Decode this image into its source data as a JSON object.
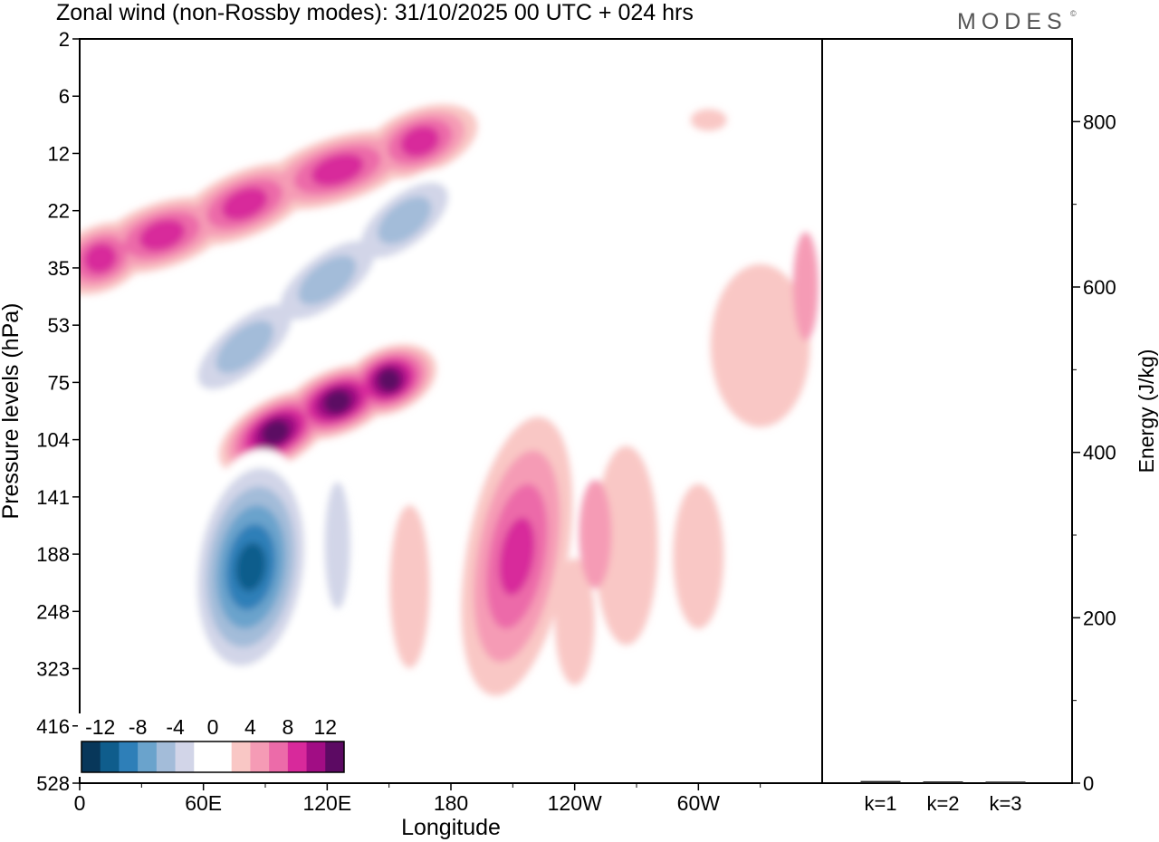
{
  "chart_data": {
    "type": "heatmap",
    "title": "Zonal wind (non-Rossby modes):  31/10/2025  00 UTC  + 024 hrs",
    "brand": "MODES",
    "brand_mark": "©",
    "xlabel": "Longitude",
    "ylabel": "Pressure levels (hPa)",
    "x_ticks": [
      {
        "label": "0",
        "lon": 0
      },
      {
        "label": "60E",
        "lon": 60
      },
      {
        "label": "120E",
        "lon": 120
      },
      {
        "label": "180",
        "lon": 180
      },
      {
        "label": "120W",
        "lon": 240
      },
      {
        "label": "60W",
        "lon": 300
      }
    ],
    "xlim": [
      0,
      360
    ],
    "y_ticks": [
      "2",
      "6",
      "12",
      "22",
      "35",
      "53",
      "75",
      "104",
      "141",
      "188",
      "248",
      "323",
      "416",
      "528"
    ],
    "colorbar": {
      "labels": [
        "-12",
        "-8",
        "-4",
        "0",
        "4",
        "8",
        "12"
      ],
      "colors": [
        "#08375a",
        "#0f5d8c",
        "#2e7fb8",
        "#6aa3cc",
        "#a3bcd9",
        "#d2d5e8",
        "#ffffff",
        "#ffffff",
        "#f9c7c5",
        "#f59bb5",
        "#ec6ba9",
        "#d8299b",
        "#a10d84",
        "#5c0a63"
      ]
    },
    "levels": [
      -14,
      -12,
      -10,
      -8,
      -6,
      -4,
      -2,
      2,
      4,
      6,
      8,
      10,
      12,
      14
    ],
    "features": [
      {
        "name": "stratospheric-westerly-band",
        "sign": "+",
        "peak": 9,
        "path": [
          [
            0,
            35
          ],
          [
            20,
            30
          ],
          [
            60,
            24
          ],
          [
            100,
            17
          ],
          [
            150,
            12
          ],
          [
            180,
            9
          ]
        ]
      },
      {
        "name": "stratospheric-easterly-band",
        "sign": "-",
        "peak": -6,
        "path": [
          [
            60,
            75
          ],
          [
            100,
            48
          ],
          [
            140,
            30
          ],
          [
            175,
            18
          ]
        ]
      },
      {
        "name": "lower-strat-westerly-band",
        "sign": "+",
        "peak": 12,
        "path": [
          [
            80,
            110
          ],
          [
            110,
            90
          ],
          [
            140,
            78
          ],
          [
            160,
            70
          ]
        ]
      },
      {
        "name": "upper-trop-easterly-jet",
        "sign": "-",
        "peak": -13,
        "center": [
          83,
          200
        ]
      },
      {
        "name": "upper-trop-westerly",
        "sign": "+",
        "peak": 9,
        "center": [
          212,
          190
        ]
      }
    ],
    "energy_panel": {
      "ylabel": "Energy (J/kg)",
      "ylim": [
        0,
        900
      ],
      "y_ticks": [
        "0",
        "200",
        "400",
        "600",
        "800"
      ],
      "categories": [
        "k=1",
        "k=2",
        "k=3"
      ],
      "values": [
        1.5,
        1.0,
        0.8
      ]
    }
  }
}
